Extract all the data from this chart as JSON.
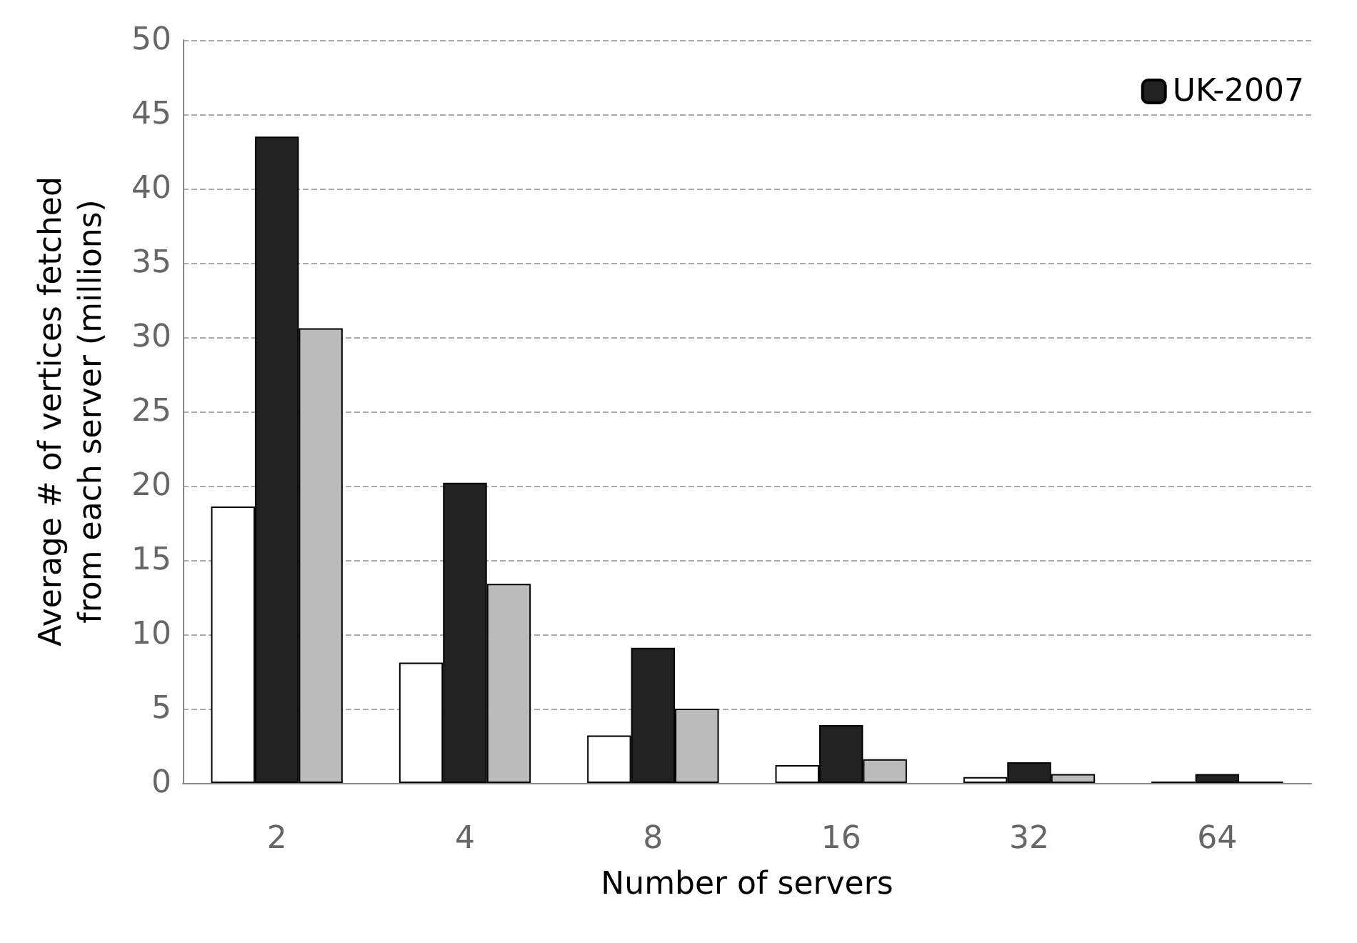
{
  "chart_data": {
    "type": "bar",
    "xlabel": "Number of servers",
    "ylabel": "Average # of vertices fetched\nfrom each server (millions)",
    "categories": [
      "2",
      "4",
      "8",
      "16",
      "32",
      "64"
    ],
    "series": [
      {
        "color": "#ffffff",
        "values": [
          18.6,
          8.1,
          3.2,
          1.2,
          0.4,
          0.1
        ]
      },
      {
        "name": "UK-2007",
        "color": "#222222",
        "values": [
          43.5,
          20.2,
          9.1,
          3.9,
          1.4,
          0.6
        ]
      },
      {
        "color": "#bbbbbb",
        "values": [
          30.6,
          13.4,
          5.0,
          1.6,
          0.6,
          0.1
        ]
      }
    ],
    "ylim": [
      0,
      50
    ],
    "yticks": [
      0,
      5,
      10,
      15,
      20,
      25,
      30,
      35,
      40,
      45,
      50
    ],
    "grid": "y",
    "legend": "top right"
  }
}
